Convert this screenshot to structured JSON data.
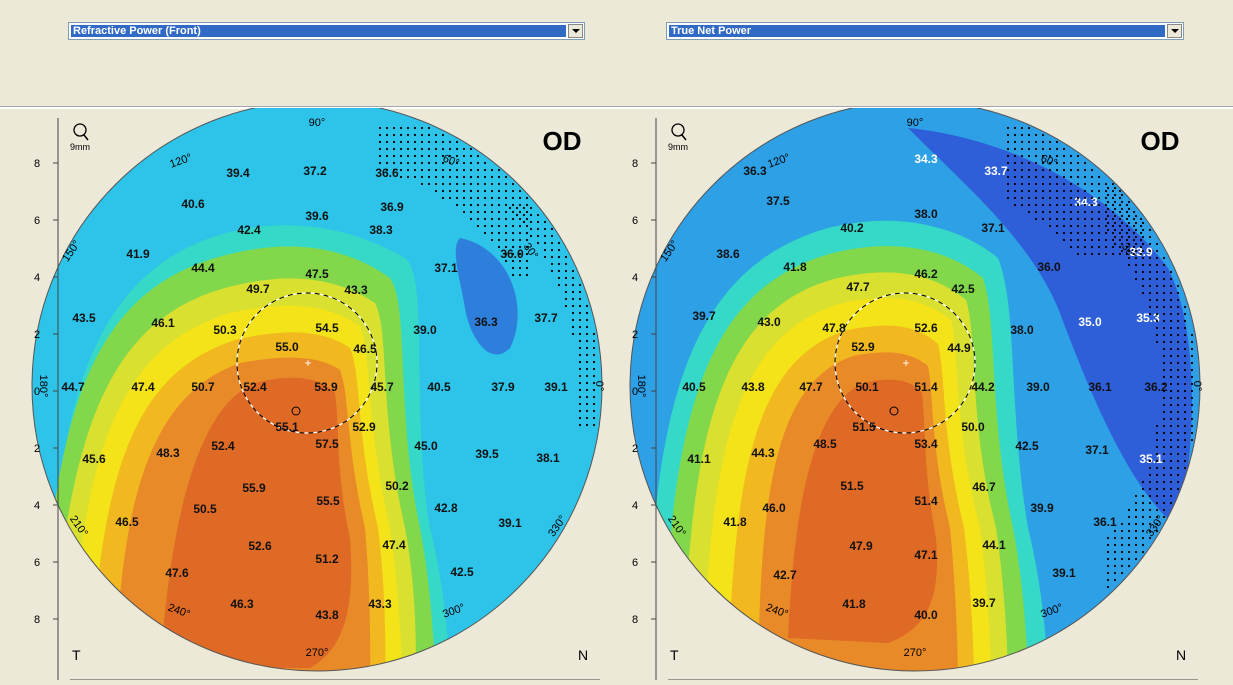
{
  "left_map": {
    "dropdown": "Refractive Power (Front)",
    "eye": "OD",
    "zoom": "9mm",
    "left_letter": "T",
    "right_letter": "N",
    "angles": [
      "90°",
      "60°",
      "30°",
      "0°",
      "330°",
      "300°",
      "270°",
      "240°",
      "210°",
      "180°",
      "150°",
      "120°"
    ],
    "y_ticks": [
      "8",
      "6",
      "4",
      "2",
      "0",
      "2",
      "4",
      "6",
      "8"
    ],
    "values": [
      {
        "v": "39.4",
        "x": 0.0,
        "y": 0.0
      },
      {
        "v": "37.2"
      },
      {
        "v": "36.6"
      },
      {
        "v": "40.6"
      },
      {
        "v": "39.6"
      },
      {
        "v": "36.9"
      },
      {
        "v": "42.4"
      },
      {
        "v": "38.3"
      },
      {
        "v": "41.9"
      },
      {
        "v": "44.4"
      },
      {
        "v": "47.5"
      },
      {
        "v": "37.1"
      },
      {
        "v": "36.0"
      },
      {
        "v": "49.7"
      },
      {
        "v": "43.3"
      },
      {
        "v": "43.5"
      },
      {
        "v": "46.1"
      },
      {
        "v": "50.3"
      },
      {
        "v": "54.5"
      },
      {
        "v": "39.0"
      },
      {
        "v": "36.3"
      },
      {
        "v": "37.7"
      },
      {
        "v": "55.0"
      },
      {
        "v": "46.5"
      },
      {
        "v": "44.7"
      },
      {
        "v": "47.4"
      },
      {
        "v": "50.7"
      },
      {
        "v": "52.4"
      },
      {
        "v": "53.9"
      },
      {
        "v": "45.7"
      },
      {
        "v": "40.5"
      },
      {
        "v": "37.9"
      },
      {
        "v": "39.1"
      },
      {
        "v": "55.1"
      },
      {
        "v": "52.9"
      },
      {
        "v": "52.4"
      },
      {
        "v": "57.5"
      },
      {
        "v": "45.0"
      },
      {
        "v": "45.6"
      },
      {
        "v": "48.3"
      },
      {
        "v": "39.5"
      },
      {
        "v": "38.1"
      },
      {
        "v": "55.9"
      },
      {
        "v": "50.2"
      },
      {
        "v": "55.5"
      },
      {
        "v": "50.5"
      },
      {
        "v": "42.8"
      },
      {
        "v": "46.5"
      },
      {
        "v": "39.1"
      },
      {
        "v": "52.6"
      },
      {
        "v": "47.4"
      },
      {
        "v": "51.2"
      },
      {
        "v": "47.6"
      },
      {
        "v": "42.5"
      },
      {
        "v": "46.3"
      },
      {
        "v": "43.3"
      },
      {
        "v": "43.8"
      }
    ]
  },
  "right_map": {
    "dropdown": "True Net Power",
    "eye": "OD",
    "zoom": "9mm",
    "left_letter": "T",
    "right_letter": "N",
    "angles": [
      "90°",
      "60°",
      "30°",
      "0°",
      "330°",
      "300°",
      "270°",
      "240°",
      "210°",
      "180°",
      "150°",
      "120°"
    ],
    "y_ticks": [
      "8",
      "6",
      "4",
      "2",
      "0",
      "2",
      "4",
      "6",
      "8"
    ],
    "values": [
      {
        "v": "34.3"
      },
      {
        "v": "36.3"
      },
      {
        "v": "33.7"
      },
      {
        "v": "37.5"
      },
      {
        "v": "38.0"
      },
      {
        "v": "34.3"
      },
      {
        "v": "40.2"
      },
      {
        "v": "37.1"
      },
      {
        "v": "33.9"
      },
      {
        "v": "38.6"
      },
      {
        "v": "41.8"
      },
      {
        "v": "46.2"
      },
      {
        "v": "36.0"
      },
      {
        "v": "47.7"
      },
      {
        "v": "42.5"
      },
      {
        "v": "39.7"
      },
      {
        "v": "43.0"
      },
      {
        "v": "47.8"
      },
      {
        "v": "52.6"
      },
      {
        "v": "38.0"
      },
      {
        "v": "35.0"
      },
      {
        "v": "35.3"
      },
      {
        "v": "52.9"
      },
      {
        "v": "44.9"
      },
      {
        "v": "40.5"
      },
      {
        "v": "43.8"
      },
      {
        "v": "47.7"
      },
      {
        "v": "50.1"
      },
      {
        "v": "51.4"
      },
      {
        "v": "44.2"
      },
      {
        "v": "39.0"
      },
      {
        "v": "36.1"
      },
      {
        "v": "36.2"
      },
      {
        "v": "51.5"
      },
      {
        "v": "50.0"
      },
      {
        "v": "41.1"
      },
      {
        "v": "44.3"
      },
      {
        "v": "48.5"
      },
      {
        "v": "53.4"
      },
      {
        "v": "42.5"
      },
      {
        "v": "37.1"
      },
      {
        "v": "35.1"
      },
      {
        "v": "51.5"
      },
      {
        "v": "46.7"
      },
      {
        "v": "46.0"
      },
      {
        "v": "51.4"
      },
      {
        "v": "39.9"
      },
      {
        "v": "41.8"
      },
      {
        "v": "36.1"
      },
      {
        "v": "47.9"
      },
      {
        "v": "44.1"
      },
      {
        "v": "47.1"
      },
      {
        "v": "42.7"
      },
      {
        "v": "39.1"
      },
      {
        "v": "41.8"
      },
      {
        "v": "39.7"
      },
      {
        "v": "40.0"
      }
    ]
  }
}
